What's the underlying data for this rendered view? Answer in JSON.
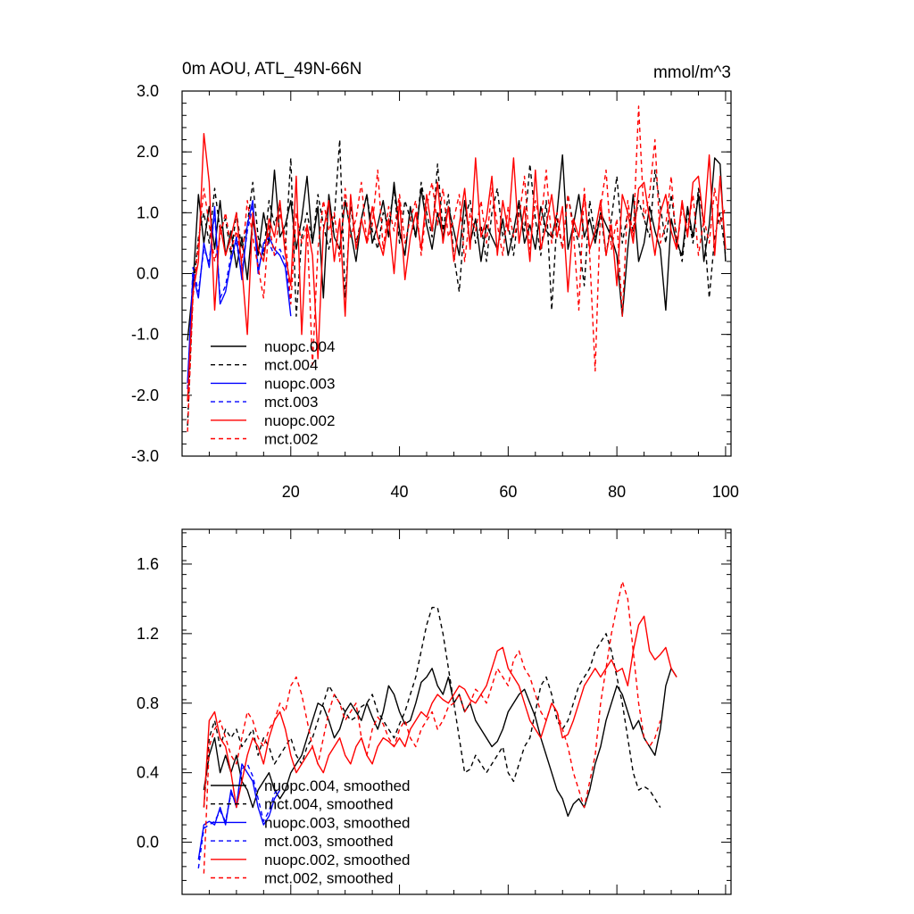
{
  "colors": {
    "black": "#000000",
    "blue": "#0000ff",
    "red": "#ff0000"
  },
  "chart_data": [
    {
      "type": "line",
      "title": "0m AOU, ATL_49N-66N",
      "units": "mmol/m^3",
      "xlim": [
        0,
        101
      ],
      "ylim": [
        -3.0,
        3.0
      ],
      "xticks": [
        20,
        40,
        60,
        80,
        100
      ],
      "xtick_labels": [
        "20",
        "40",
        "60",
        "80",
        "100"
      ],
      "yticks": [
        3.0,
        2.0,
        1.0,
        0.0,
        -1.0,
        -2.0,
        -3.0
      ],
      "ytick_labels": [
        "3.0",
        "2.0",
        "1.0",
        "0.0",
        "-1.0",
        "-2.0",
        "-3.0"
      ],
      "legend_position": "lower-left",
      "series": [
        {
          "name": "nuopc.004",
          "color": "#000000",
          "dash": "solid",
          "x_start": 1,
          "values": [
            -1.1,
            -0.2,
            1.3,
            0.5,
            1.1,
            0.4,
            1.2,
            0.3,
            0.7,
            0.1,
            0.6,
            -0.1,
            0.9,
            0.3,
            1.0,
            0.5,
            1.7,
            0.6,
            0.8,
            1.2,
            0.4,
            0.9,
            1.6,
            0.5,
            1.1,
            -0.4,
            1.3,
            0.6,
            0.4,
            1.2,
            0.7,
            0.2,
            0.9,
            1.3,
            0.5,
            0.8,
            1.2,
            0.6,
            1.5,
            0.7,
            0.3,
            1.1,
            0.6,
            1.4,
            0.8,
            0.4,
            1.0,
            0.6,
            1.1,
            0.7,
            0.3,
            1.2,
            0.5,
            0.9,
            0.2,
            0.8,
            0.6,
            0.4,
            0.9,
            0.3,
            0.7,
            1.2,
            0.5,
            0.8,
            0.4,
            1.1,
            0.7,
            0.6,
            1.0,
            1.95,
            0.4,
            0.8,
            1.3,
            0.6,
            0.9,
            0.5,
            1.0,
            0.8,
            0.6,
            0.3,
            -0.7,
            0.4,
            1.3,
            0.2,
            0.5,
            1.1,
            0.7,
            0.4,
            -0.6,
            0.9,
            0.5,
            0.3,
            1.1,
            0.6,
            1.3,
            0.2,
            0.8,
            1.9,
            1.8,
            0.2
          ]
        },
        {
          "name": "mct.004",
          "color": "#000000",
          "dash": "dashed",
          "x_start": 1,
          "values": [
            -2.5,
            -0.3,
            0.6,
            1.0,
            0.5,
            1.4,
            0.7,
            0.9,
            0.3,
            1.0,
            0.4,
            0.8,
            1.5,
            0.6,
            0.3,
            1.2,
            0.8,
            1.1,
            0.4,
            1.9,
            -0.7,
            0.6,
            1.0,
            0.5,
            1.3,
            0.8,
            0.4,
            0.9,
            2.2,
            -0.4,
            1.1,
            0.5,
            0.9,
            1.3,
            0.7,
            0.4,
            1.0,
            0.8,
            1.4,
            0.5,
            1.2,
            0.9,
            0.6,
            1.5,
            1.0,
            0.6,
            1.8,
            0.7,
            1.3,
            0.3,
            -0.3,
            0.9,
            1.2,
            0.5,
            0.8,
            0.2,
            1.0,
            1.4,
            0.6,
            0.8,
            0.3,
            1.1,
            0.7,
            1.8,
            0.9,
            0.3,
            1.2,
            -0.6,
            0.9,
            0.4,
            1.3,
            0.8,
            0.5,
            -0.2,
            1.2,
            0.6,
            1.0,
            0.3,
            0.9,
            1.6,
            0.5,
            1.0,
            0.7,
            1.2,
            0.9,
            0.6,
            1.7,
            1.1,
            0.5,
            1.3,
            0.6,
            0.2,
            1.0,
            0.5,
            1.4,
            0.8,
            -0.4,
            0.6,
            1.0,
            0.3
          ]
        },
        {
          "name": "nuopc.003",
          "color": "#0000ff",
          "dash": "solid",
          "x_start": 1,
          "values": [
            -1.8,
            0.0,
            -0.4,
            0.5,
            0.1,
            1.1,
            -0.5,
            -0.3,
            0.2,
            0.6,
            -0.1,
            0.8,
            1.2,
            0.0,
            0.5,
            0.6,
            0.4,
            0.3,
            0.1,
            -0.7
          ]
        },
        {
          "name": "mct.003",
          "color": "#0000ff",
          "dash": "dashed",
          "x_start": 1,
          "values": [
            -1.9,
            0.1,
            -0.3,
            0.4,
            0.2,
            1.0,
            -0.4,
            -0.2,
            0.3,
            0.5,
            0.0,
            0.7,
            1.1,
            0.1,
            0.4,
            0.5,
            0.3,
            0.4,
            0.2,
            -0.5
          ]
        },
        {
          "name": "nuopc.002",
          "color": "#ff0000",
          "dash": "solid",
          "x_start": 1,
          "values": [
            -2.1,
            -0.3,
            0.2,
            2.3,
            1.5,
            -0.6,
            0.8,
            0.3,
            0.6,
            1.0,
            0.1,
            -1.0,
            1.0,
            0.4,
            0.2,
            0.9,
            0.6,
            1.2,
            0.3,
            -0.2,
            1.6,
            -1.0,
            0.8,
            0.3,
            -1.4,
            0.7,
            1.2,
            0.2,
            0.9,
            -0.7,
            1.3,
            0.4,
            0.9,
            0.5,
            1.1,
            0.6,
            0.3,
            0.9,
            0.0,
            1.2,
            -0.1,
            0.6,
            1.0,
            0.4,
            1.3,
            0.7,
            1.5,
            0.5,
            1.1,
            0.2,
            0.8,
            1.4,
            0.4,
            1.9,
            0.6,
            0.9,
            1.6,
            0.3,
            1.2,
            0.7,
            1.9,
            0.5,
            1.1,
            0.2,
            1.7,
            0.4,
            0.8,
            1.3,
            0.6,
            1.1,
            -0.3,
            0.9,
            0.6,
            1.3,
            0.4,
            0.7,
            1.2,
            0.3,
            0.8,
            -0.2,
            1.3,
            1.0,
            0.5,
            1.4,
            1.5,
            0.9,
            0.3,
            1.0,
            1.3,
            0.7,
            0.4,
            1.2,
            0.6,
            1.5,
            1.6,
            0.8,
            1.95,
            0.3,
            1.6,
            0.4
          ]
        },
        {
          "name": "mct.002",
          "color": "#ff0000",
          "dash": "dashed",
          "x_start": 1,
          "values": [
            -2.6,
            -0.4,
            0.5,
            1.4,
            0.8,
            0.2,
            0.6,
            1.0,
            0.4,
            0.7,
            0.2,
            1.2,
            0.6,
            0.1,
            -0.4,
            0.8,
            0.3,
            1.0,
            0.6,
            -0.5,
            1.0,
            0.5,
            0.8,
            -1.5,
            0.4,
            1.2,
            0.7,
            1.0,
            0.2,
            1.4,
            0.6,
            0.9,
            1.5,
            0.5,
            0.8,
            1.7,
            0.4,
            1.1,
            0.7,
            1.3,
            0.5,
            0.9,
            1.2,
            0.3,
            1.1,
            1.5,
            0.8,
            1.4,
            0.6,
            0.9,
            1.3,
            0.2,
            1.0,
            0.7,
            1.2,
            0.5,
            1.4,
            0.8,
            0.3,
            1.1,
            0.6,
            0.9,
            1.6,
            0.4,
            1.2,
            0.8,
            1.7,
            0.5,
            1.0,
            0.4,
            1.3,
            0.7,
            -0.6,
            1.4,
            0.3,
            -1.6,
            1.1,
            1.7,
            0.4,
            0.9,
            -0.7,
            1.2,
            0.6,
            2.75,
            0.9,
            1.3,
            2.2,
            0.5,
            0.8,
            1.6,
            0.4,
            1.1,
            0.7,
            1.3,
            0.3,
            0.9,
            0.5,
            1.4,
            0.8,
            1.1
          ]
        }
      ]
    },
    {
      "type": "line",
      "title": "",
      "xlim": [
        0,
        101
      ],
      "ylim": [
        -0.3,
        1.8
      ],
      "xticks": [
        20,
        40,
        60,
        80,
        100
      ],
      "xtick_labels": [
        "",
        "",
        "",
        "",
        ""
      ],
      "yticks": [
        1.6,
        1.2,
        0.8,
        0.4,
        0.0
      ],
      "ytick_labels": [
        "1.6",
        "1.2",
        "0.8",
        "0.4",
        "0.0"
      ],
      "legend_position": "lower-left",
      "series": [
        {
          "name": "nuopc.004, smoothed",
          "color": "#000000",
          "dash": "solid",
          "x_start": 4,
          "values": [
            0.3,
            0.5,
            0.6,
            0.4,
            0.5,
            0.4,
            0.5,
            0.35,
            0.3,
            0.2,
            0.3,
            0.35,
            0.4,
            0.3,
            0.25,
            0.3,
            0.4,
            0.45,
            0.5,
            0.6,
            0.7,
            0.8,
            0.78,
            0.7,
            0.6,
            0.65,
            0.75,
            0.8,
            0.75,
            0.7,
            0.8,
            0.72,
            0.65,
            0.75,
            0.9,
            0.85,
            0.75,
            0.68,
            0.7,
            0.8,
            0.92,
            0.95,
            1.0,
            0.9,
            0.85,
            0.95,
            0.8,
            0.85,
            0.75,
            0.8,
            0.7,
            0.65,
            0.6,
            0.55,
            0.58,
            0.65,
            0.75,
            0.8,
            0.85,
            0.88,
            0.8,
            0.72,
            0.6,
            0.5,
            0.4,
            0.3,
            0.25,
            0.15,
            0.22,
            0.25,
            0.2,
            0.3,
            0.45,
            0.55,
            0.7,
            0.8,
            0.9,
            0.85,
            0.75,
            0.65,
            0.7,
            0.6,
            0.55,
            0.5,
            0.65,
            0.9,
            1.0,
            0.95
          ]
        },
        {
          "name": "mct.004, smoothed",
          "color": "#000000",
          "dash": "dashed",
          "x_start": 4,
          "values": [
            0.2,
            0.6,
            0.7,
            0.55,
            0.65,
            0.6,
            0.65,
            0.55,
            0.6,
            0.65,
            0.5,
            0.6,
            0.55,
            0.45,
            0.5,
            0.55,
            0.6,
            0.5,
            0.45,
            0.55,
            0.6,
            0.7,
            0.8,
            0.9,
            0.85,
            0.8,
            0.75,
            0.7,
            0.72,
            0.78,
            0.8,
            0.85,
            0.75,
            0.7,
            0.65,
            0.6,
            0.68,
            0.75,
            0.85,
            0.95,
            1.1,
            1.25,
            1.35,
            1.35,
            1.2,
            1.0,
            0.8,
            0.6,
            0.4,
            0.42,
            0.5,
            0.45,
            0.4,
            0.45,
            0.5,
            0.55,
            0.4,
            0.35,
            0.45,
            0.55,
            0.6,
            0.75,
            0.9,
            0.95,
            0.85,
            0.7,
            0.65,
            0.7,
            0.8,
            0.9,
            0.95,
            1.0,
            1.1,
            1.15,
            1.2,
            1.1,
            0.95,
            0.8,
            0.6,
            0.4,
            0.3,
            0.32,
            0.3,
            0.25,
            0.2
          ]
        },
        {
          "name": "nuopc.003, smoothed",
          "color": "#0000ff",
          "dash": "solid",
          "x_start": 3,
          "values": [
            -0.1,
            0.1,
            0.12,
            0.1,
            0.2,
            0.1,
            0.3,
            0.2,
            0.45,
            0.4,
            0.35,
            0.2,
            0.1,
            0.15,
            0.25,
            0.3
          ]
        },
        {
          "name": "mct.003, smoothed",
          "color": "#0000ff",
          "dash": "dashed",
          "x_start": 3,
          "values": [
            -0.15,
            0.08,
            0.1,
            0.12,
            0.18,
            0.12,
            0.28,
            0.22,
            0.42,
            0.45,
            0.38,
            0.25,
            0.12,
            0.18,
            0.28,
            0.32
          ]
        },
        {
          "name": "nuopc.002, smoothed",
          "color": "#ff0000",
          "dash": "solid",
          "x_start": 4,
          "values": [
            0.2,
            0.7,
            0.75,
            0.6,
            0.55,
            0.4,
            0.2,
            0.35,
            0.5,
            0.6,
            0.55,
            0.45,
            0.6,
            0.7,
            0.75,
            0.65,
            0.5,
            0.4,
            0.45,
            0.5,
            0.55,
            0.45,
            0.4,
            0.5,
            0.55,
            0.6,
            0.5,
            0.45,
            0.55,
            0.6,
            0.5,
            0.45,
            0.55,
            0.6,
            0.58,
            0.55,
            0.6,
            0.55,
            0.65,
            0.7,
            0.75,
            0.72,
            0.8,
            0.85,
            0.82,
            0.8,
            0.85,
            0.9,
            0.88,
            0.82,
            0.8,
            0.85,
            0.9,
            1.0,
            1.1,
            1.12,
            1.0,
            0.95,
            0.9,
            0.8,
            0.7,
            0.65,
            0.6,
            0.7,
            0.8,
            0.75,
            0.6,
            0.62,
            0.7,
            0.8,
            0.9,
            0.95,
            1.0,
            0.95,
            1.0,
            1.05,
            0.98,
            1.0,
            0.9,
            1.1,
            1.25,
            1.3,
            1.1,
            1.05,
            1.08,
            1.12,
            1.0,
            0.95
          ]
        },
        {
          "name": "mct.002, smoothed",
          "color": "#ff0000",
          "dash": "dashed",
          "x_start": 4,
          "values": [
            -0.18,
            0.55,
            0.65,
            0.7,
            0.6,
            0.5,
            0.45,
            0.6,
            0.75,
            0.7,
            0.6,
            0.55,
            0.65,
            0.7,
            0.8,
            0.75,
            0.9,
            0.95,
            0.85,
            0.7,
            0.55,
            0.45,
            0.6,
            0.75,
            0.85,
            0.8,
            0.7,
            0.75,
            0.8,
            0.6,
            0.5,
            0.65,
            0.72,
            0.68,
            0.6,
            0.55,
            0.65,
            0.7,
            0.6,
            0.55,
            0.65,
            0.7,
            0.75,
            0.65,
            0.7,
            0.78,
            0.8,
            0.85,
            0.75,
            0.8,
            0.88,
            0.85,
            0.8,
            0.9,
            1.0,
            0.95,
            0.9,
            1.05,
            1.1,
            1.0,
            0.95,
            0.85,
            0.75,
            0.7,
            0.8,
            0.75,
            0.65,
            0.55,
            0.4,
            0.3,
            0.2,
            0.35,
            0.5,
            0.8,
            1.0,
            1.2,
            1.35,
            1.5,
            1.4,
            1.1,
            0.8,
            0.6,
            0.55,
            0.6,
            0.7
          ]
        }
      ]
    }
  ]
}
